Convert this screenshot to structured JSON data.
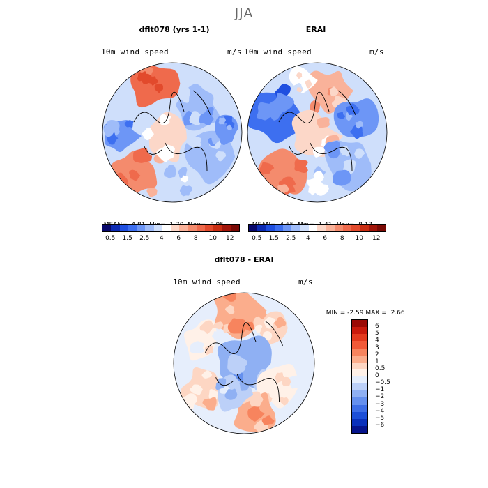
{
  "figure": {
    "title": "JJA"
  },
  "chart_data": [
    {
      "type": "heatmap",
      "projection": "polar-stereographic",
      "title": "dflt078 (yrs 1-1)",
      "variable": "10m wind speed",
      "units": "m/s",
      "mean_label": "MEAN=",
      "mean": "4.81",
      "min_label": "Min=",
      "min": "1.70",
      "max_label": "Max=",
      "max": "8.95",
      "colorbar_ticks": [
        "0.5",
        "1.5",
        "2.5",
        "4",
        "6",
        "8",
        "10",
        "12"
      ],
      "colorbar_colors": [
        "#08086b",
        "#0c2bb4",
        "#1f4fe0",
        "#3d6ff0",
        "#6d96f6",
        "#9fbcf9",
        "#cfdffb",
        "#ffffff",
        "#fcd7c8",
        "#f9b29a",
        "#f48b6d",
        "#ef6a4c",
        "#e24a2c",
        "#c92d12",
        "#a1150a",
        "#7a0a05"
      ]
    },
    {
      "type": "heatmap",
      "projection": "polar-stereographic",
      "title": "ERAI",
      "variable": "10m wind speed",
      "units": "m/s",
      "mean_label": "MEAN=",
      "mean": "4.65",
      "min_label": "Min=",
      "min": "1.41",
      "max_label": "Max=",
      "max": "8.17",
      "colorbar_ticks": [
        "0.5",
        "1.5",
        "2.5",
        "4",
        "6",
        "8",
        "10",
        "12"
      ],
      "colorbar_colors": [
        "#08086b",
        "#0c2bb4",
        "#1f4fe0",
        "#3d6ff0",
        "#6d96f6",
        "#9fbcf9",
        "#cfdffb",
        "#ffffff",
        "#fcd7c8",
        "#f9b29a",
        "#f48b6d",
        "#ef6a4c",
        "#e24a2c",
        "#c92d12",
        "#a1150a",
        "#7a0a05"
      ]
    },
    {
      "type": "heatmap",
      "projection": "polar-stereographic",
      "title": "dflt078 - ERAI",
      "variable": "10m wind speed",
      "units": "m/s",
      "min_label": "MIN =",
      "min": "-2.59",
      "max_label": "MAX =",
      "max": "2.66",
      "colorbar_ticks": [
        "6",
        "5",
        "4",
        "3",
        "2",
        "1",
        "0.5",
        "0",
        "−0.5",
        "−1",
        "−2",
        "−3",
        "−4",
        "−5",
        "−6"
      ],
      "colorbar_colors": [
        "#9b0a05",
        "#c91a0c",
        "#e33a1e",
        "#f25a38",
        "#f7845e",
        "#fbad8c",
        "#fdd6c3",
        "#fff1e8",
        "#e6eefc",
        "#bcd0f8",
        "#8fb0f3",
        "#6590ee",
        "#3d6ee6",
        "#1c4fd8",
        "#0a31bb",
        "#06148c"
      ]
    }
  ]
}
